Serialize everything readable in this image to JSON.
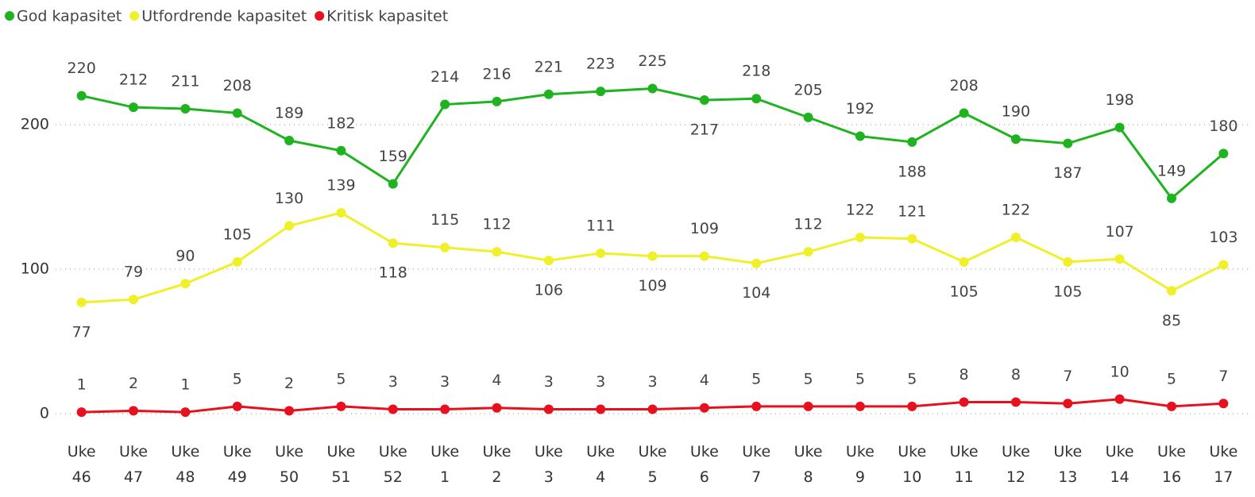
{
  "chart_data": {
    "type": "line",
    "categories": [
      "Uke 46",
      "Uke 47",
      "Uke 48",
      "Uke 49",
      "Uke 50",
      "Uke 51",
      "Uke 52",
      "Uke 1",
      "Uke 2",
      "Uke 3",
      "Uke 4",
      "Uke 5",
      "Uke 6",
      "Uke 7",
      "Uke 8",
      "Uke 9",
      "Uke 10",
      "Uke 11",
      "Uke 12",
      "Uke 13",
      "Uke 14",
      "Uke 16",
      "Uke 17"
    ],
    "series": [
      {
        "name": "God kapasitet",
        "color": "#1fb31f",
        "values": [
          220,
          212,
          211,
          208,
          189,
          182,
          159,
          214,
          216,
          221,
          223,
          225,
          217,
          218,
          205,
          192,
          188,
          208,
          190,
          187,
          198,
          149,
          180
        ]
      },
      {
        "name": "Utfordrende kapasitet",
        "color": "#f0f02a",
        "values": [
          77,
          79,
          90,
          105,
          130,
          139,
          118,
          115,
          112,
          106,
          111,
          109,
          109,
          104,
          112,
          122,
          121,
          105,
          122,
          105,
          107,
          85,
          103
        ]
      },
      {
        "name": "Kritisk kapasitet",
        "color": "#e8101c",
        "values": [
          1,
          2,
          1,
          5,
          2,
          5,
          3,
          3,
          4,
          3,
          3,
          3,
          4,
          5,
          5,
          5,
          5,
          8,
          8,
          7,
          10,
          5,
          7
        ]
      }
    ],
    "ylim": [
      0,
      240
    ],
    "yticks": [
      0,
      100,
      200
    ],
    "grid": true,
    "legend": "top-left"
  }
}
